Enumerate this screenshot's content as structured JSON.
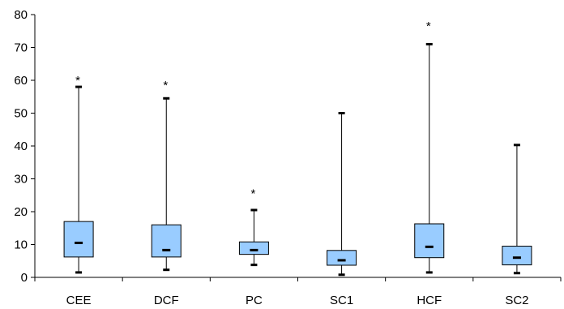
{
  "chart_data": {
    "type": "boxplot",
    "title": "",
    "xlabel": "",
    "ylabel": "",
    "ylim": [
      0,
      80
    ],
    "yticks": [
      0,
      10,
      20,
      30,
      40,
      50,
      60,
      70,
      80
    ],
    "grid": false,
    "legend": "none",
    "categories": [
      "CEE",
      "DCF",
      "PC",
      "SC1",
      "HCF",
      "SC2"
    ],
    "boxes": [
      {
        "category": "CEE",
        "whisker_low": 1.5,
        "q1": 6.2,
        "median": 10.5,
        "q3": 17.0,
        "whisker_high": 58.0,
        "outlier_marker": "*",
        "outlier_marker_value": 61.0
      },
      {
        "category": "DCF",
        "whisker_low": 2.3,
        "q1": 6.2,
        "median": 8.3,
        "q3": 16.0,
        "whisker_high": 54.5,
        "outlier_marker": "*",
        "outlier_marker_value": 59.5
      },
      {
        "category": "PC",
        "whisker_low": 3.8,
        "q1": 7.0,
        "median": 8.3,
        "q3": 10.8,
        "whisker_high": 20.5,
        "outlier_marker": "*",
        "outlier_marker_value": 26.5
      },
      {
        "category": "SC1",
        "whisker_low": 0.8,
        "q1": 3.7,
        "median": 5.2,
        "q3": 8.2,
        "whisker_high": 50.0,
        "outlier_marker": "",
        "outlier_marker_value": null
      },
      {
        "category": "HCF",
        "whisker_low": 1.5,
        "q1": 6.0,
        "median": 9.3,
        "q3": 16.3,
        "whisker_high": 71.0,
        "outlier_marker": "*",
        "outlier_marker_value": 77.5
      },
      {
        "category": "SC2",
        "whisker_low": 1.3,
        "q1": 3.8,
        "median": 6.0,
        "q3": 9.5,
        "whisker_high": 40.3,
        "outlier_marker": "",
        "outlier_marker_value": null
      }
    ],
    "colors": {
      "box_fill": "#99CCFF",
      "box_stroke": "#000000",
      "axis": "#000000"
    }
  }
}
